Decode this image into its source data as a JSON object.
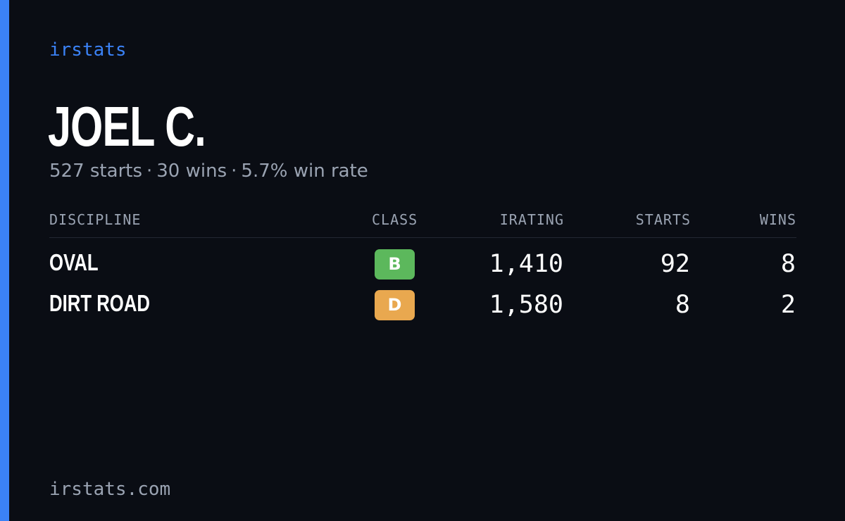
{
  "brand": "irstats",
  "driver": {
    "name": "JOEL C."
  },
  "summary": {
    "starts": "527 starts",
    "wins": "30 wins",
    "win_rate": "5.7% win rate",
    "separator": "·"
  },
  "table": {
    "headers": {
      "discipline": "DISCIPLINE",
      "class": "CLASS",
      "irating": "IRATING",
      "starts": "STARTS",
      "wins": "WINS"
    },
    "rows": [
      {
        "discipline": "OVAL",
        "class": "B",
        "class_color": "#5cb85c",
        "irating": "1,410",
        "starts": "92",
        "wins": "8"
      },
      {
        "discipline": "DIRT ROAD",
        "class": "D",
        "class_color": "#e9a84f",
        "irating": "1,580",
        "starts": "8",
        "wins": "2"
      }
    ]
  },
  "footer": "irstats.com",
  "colors": {
    "accent": "#3b82f6",
    "background": "#0a0d14",
    "muted_text": "#9aa3b2"
  }
}
